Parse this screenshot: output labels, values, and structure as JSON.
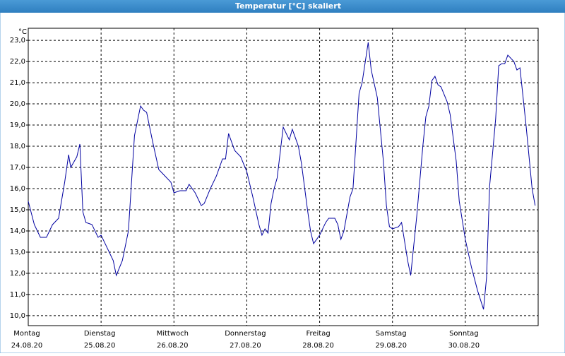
{
  "chart_data": {
    "type": "line",
    "title": "Temperatur [°C] skaliert",
    "y_unit": "°C",
    "x": [
      0,
      2,
      4,
      6,
      8,
      10,
      12,
      13.3,
      14,
      16,
      17,
      18,
      19,
      21,
      23,
      24,
      26,
      28,
      29,
      31,
      33,
      35,
      37,
      38,
      39,
      41,
      43,
      45,
      47,
      48,
      50,
      52,
      53,
      55,
      57,
      58,
      60,
      62,
      64,
      65,
      66,
      68,
      70,
      72,
      74,
      76,
      77,
      78,
      79,
      80,
      81,
      82,
      84,
      86,
      87,
      89,
      90,
      92,
      93,
      94,
      96,
      98,
      99,
      101,
      102,
      103,
      104,
      106,
      107,
      109,
      110,
      112,
      113,
      115,
      117,
      118,
      119,
      120,
      122,
      123,
      125,
      126,
      128,
      130,
      131,
      132,
      133,
      134,
      135,
      136,
      138,
      139,
      141,
      142,
      144,
      146,
      148,
      150,
      151,
      152,
      154,
      155,
      156,
      157,
      158,
      160,
      161,
      162,
      164,
      166,
      167
    ],
    "series": [
      {
        "name": "Temperatur",
        "color": "#0000a0",
        "values": [
          15.4,
          14.3,
          13.7,
          13.7,
          14.3,
          14.6,
          16.3,
          17.6,
          17.0,
          17.5,
          18.1,
          14.9,
          14.4,
          14.3,
          13.7,
          13.8,
          13.2,
          12.6,
          11.9,
          12.6,
          14.0,
          18.5,
          19.9,
          19.7,
          19.6,
          18.2,
          16.9,
          16.6,
          16.3,
          15.8,
          15.9,
          15.9,
          16.2,
          15.8,
          15.2,
          15.3,
          16.0,
          16.6,
          17.4,
          17.4,
          18.6,
          17.8,
          17.5,
          16.8,
          15.6,
          14.3,
          13.8,
          14.1,
          13.9,
          15.3,
          16.0,
          16.5,
          18.9,
          18.3,
          18.8,
          18.0,
          17.2,
          15.0,
          14.0,
          13.4,
          13.8,
          14.4,
          14.6,
          14.6,
          14.3,
          13.6,
          14.0,
          15.6,
          16.0,
          20.5,
          21.0,
          22.9,
          21.6,
          20.3,
          17.3,
          15.2,
          14.2,
          14.1,
          14.2,
          14.4,
          12.6,
          11.9,
          14.7,
          18.0,
          19.4,
          19.9,
          21.1,
          21.3,
          20.9,
          20.8,
          20.1,
          19.5,
          17.3,
          15.4,
          13.6,
          12.3,
          11.2,
          10.3,
          11.8,
          16.1,
          19.3,
          21.8,
          21.9,
          21.9,
          22.3,
          22.0,
          21.6,
          21.7,
          19.0,
          16.0,
          15.2
        ]
      }
    ],
    "xlim": [
      0,
      168
    ],
    "xticks": [
      {
        "value": 0,
        "label": "Montag",
        "date": "24.08.20"
      },
      {
        "value": 24,
        "label": "Dienstag",
        "date": "25.08.20"
      },
      {
        "value": 48,
        "label": "Mittwoch",
        "date": "26.08.20"
      },
      {
        "value": 72,
        "label": "Donnerstag",
        "date": "27.08.20"
      },
      {
        "value": 96,
        "label": "Freitag",
        "date": "28.08.20"
      },
      {
        "value": 120,
        "label": "Samstag",
        "date": "29.08.20"
      },
      {
        "value": 144,
        "label": "Sonntag",
        "date": "30.08.20"
      },
      168
    ],
    "ylim": [
      9.53,
      23.57
    ],
    "yticks": [
      {
        "value": 10,
        "label": "10,0"
      },
      {
        "value": 11,
        "label": "11,0"
      },
      {
        "value": 12,
        "label": "12,0"
      },
      {
        "value": 13,
        "label": "13,0"
      },
      {
        "value": 14,
        "label": "14,0"
      },
      {
        "value": 15,
        "label": "15,0"
      },
      {
        "value": 16,
        "label": "16,0"
      },
      {
        "value": 17,
        "label": "17,0"
      },
      {
        "value": 18,
        "label": "18,0"
      },
      {
        "value": 19,
        "label": "19,0"
      },
      {
        "value": 20,
        "label": "20,0"
      },
      {
        "value": 21,
        "label": "21,0"
      },
      {
        "value": 22,
        "label": "22,0"
      },
      {
        "value": 23,
        "label": "23,0"
      }
    ],
    "grid": true
  }
}
